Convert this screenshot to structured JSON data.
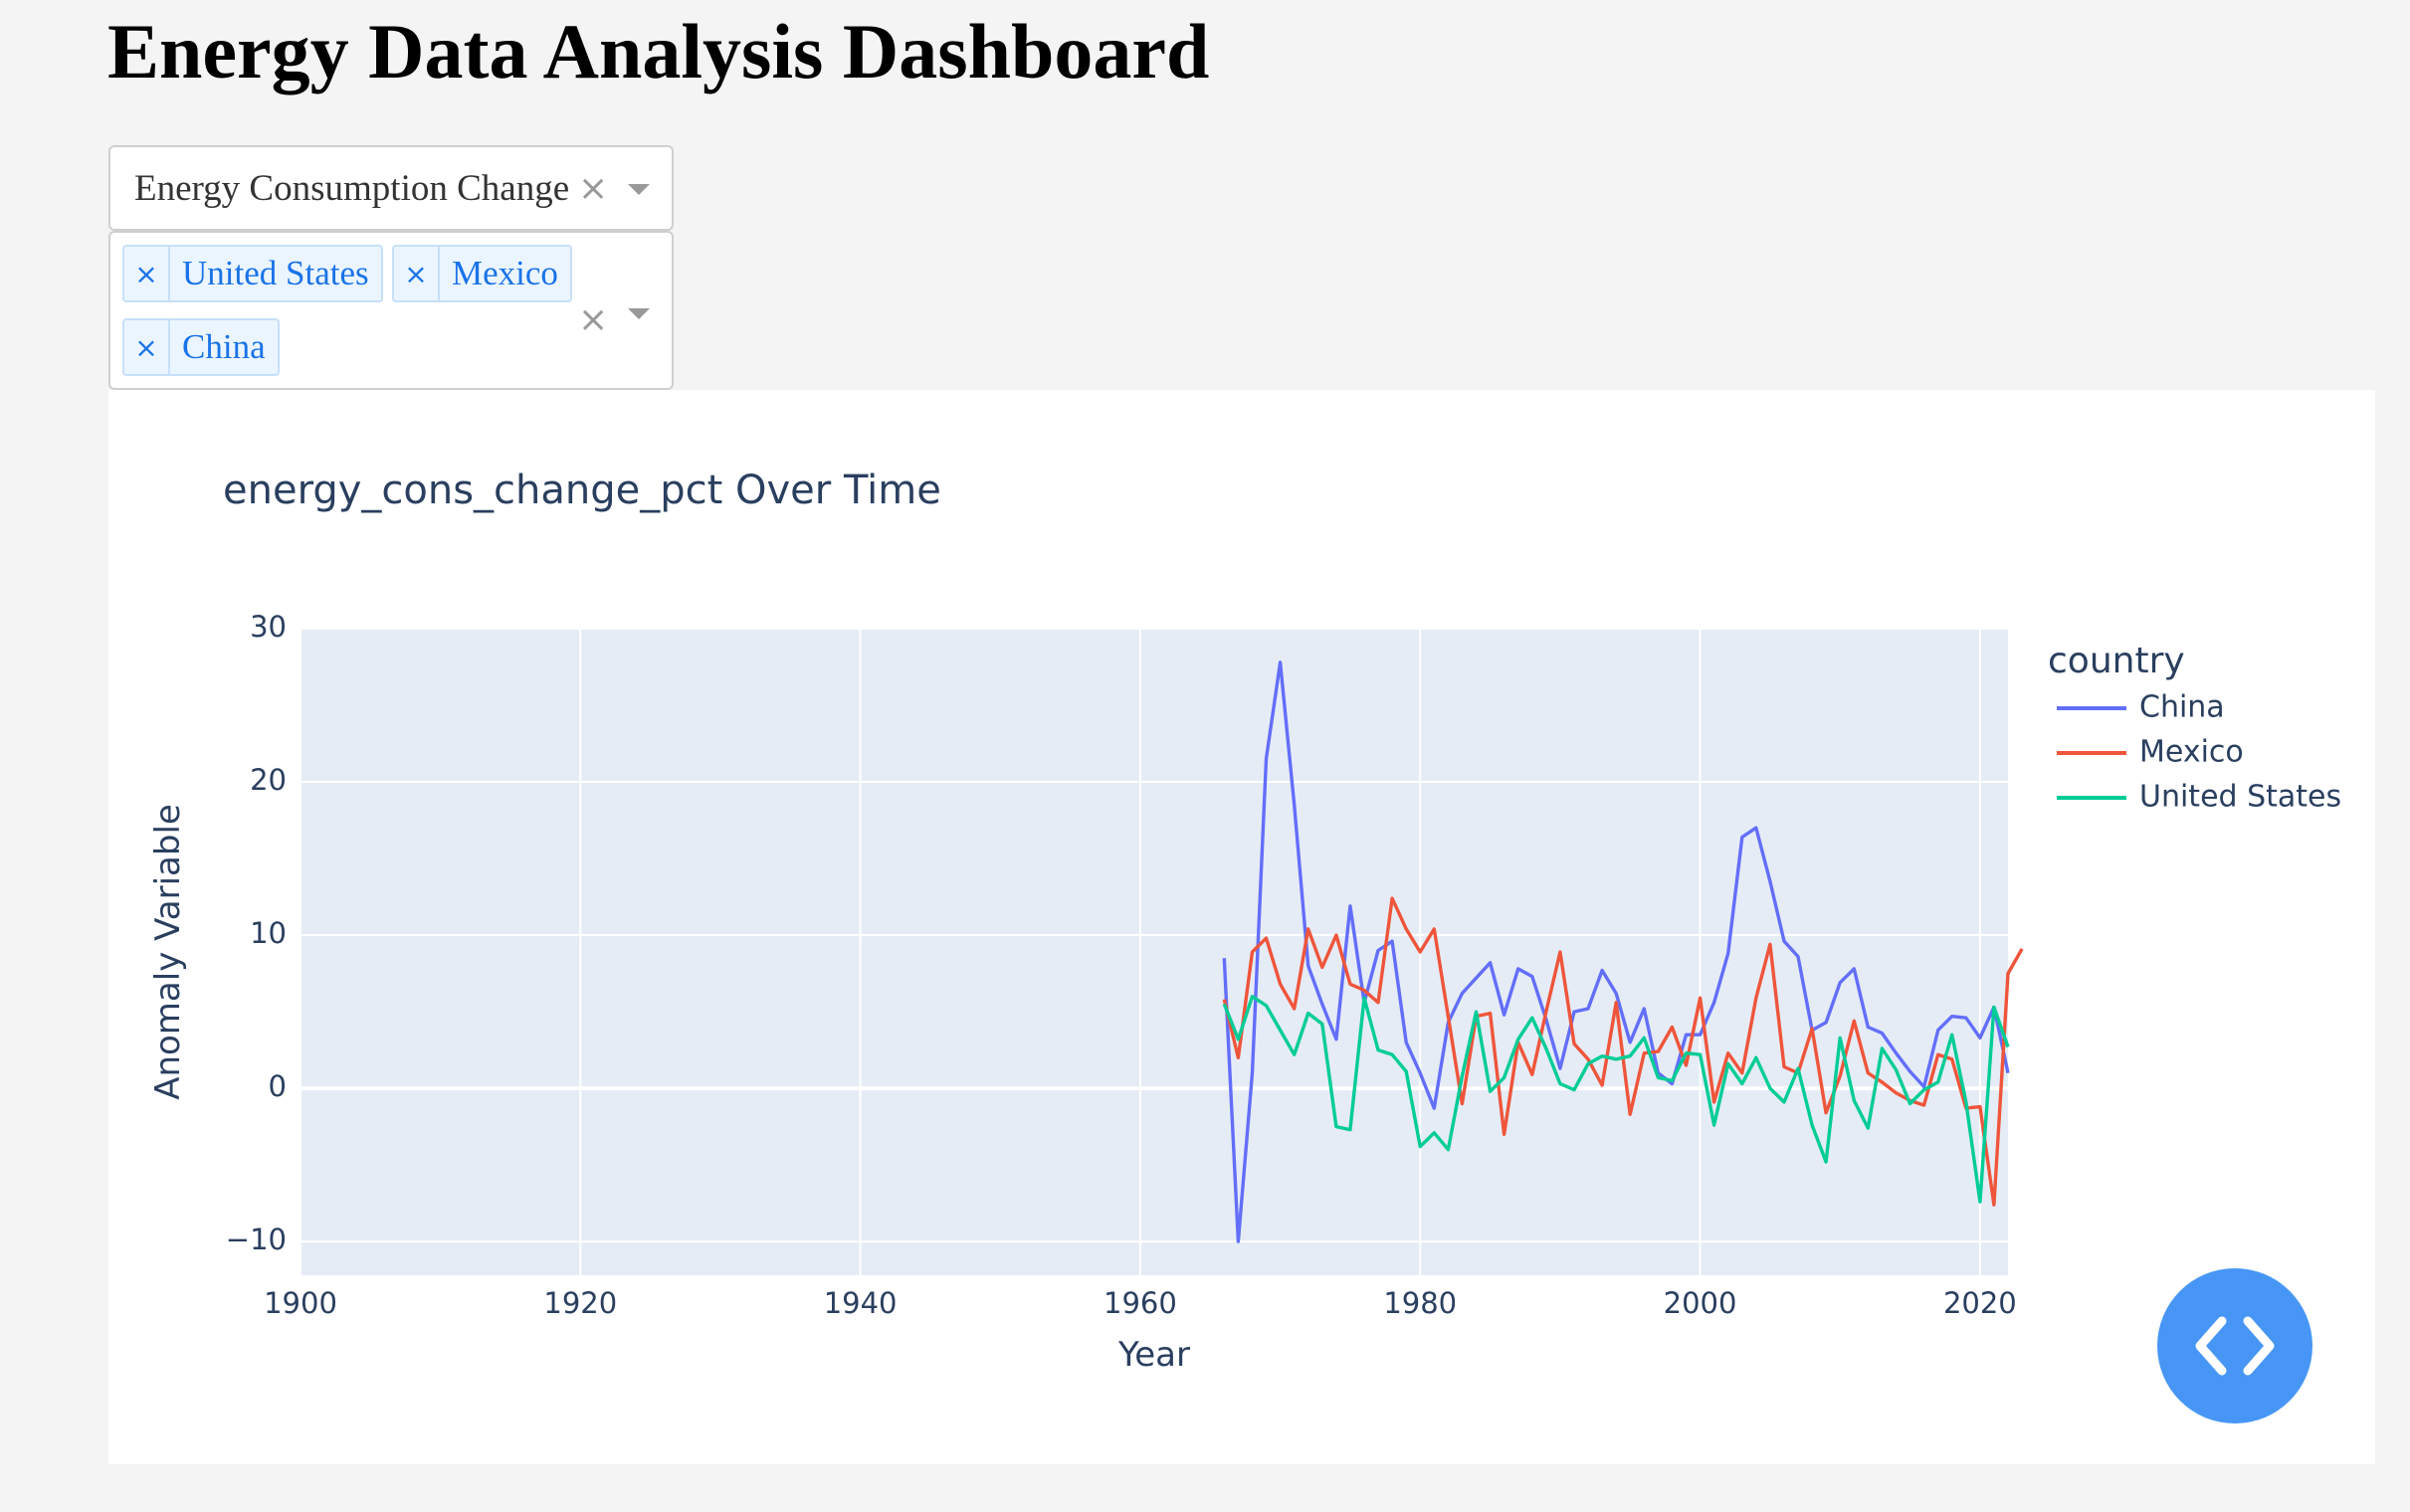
{
  "page": {
    "title": "Energy Data Analysis Dashboard"
  },
  "metric_dropdown": {
    "value": "Energy Consumption Change …"
  },
  "country_dropdown": {
    "selected": [
      "United States",
      "Mexico",
      "China"
    ]
  },
  "icons": {
    "clear": "clear-x-icon",
    "caret": "caret-down-icon",
    "tag_remove": "remove-tag-icon",
    "code": "code-brackets-icon"
  },
  "colors": {
    "China": "#636efa",
    "Mexico": "#ef553b",
    "United States": "#00cc96",
    "plot_bg": "#e5ecf6",
    "code_button": "#4796f5"
  },
  "chart_data": {
    "type": "line",
    "title": "energy_cons_change_pct Over Time",
    "xlabel": "Year",
    "ylabel": "Anomaly Variable",
    "xlim": [
      1900,
      2022
    ],
    "ylim": [
      -12.2,
      30
    ],
    "xticks": [
      1900,
      1920,
      1940,
      1960,
      1980,
      2000,
      2020
    ],
    "yticks": [
      -10,
      0,
      10,
      20,
      30
    ],
    "yticklabels": [
      "−10",
      "0",
      "10",
      "20",
      "30"
    ],
    "grid": true,
    "legend": {
      "title": "country",
      "placement": "right"
    },
    "series": [
      {
        "name": "China",
        "color": "#636efa",
        "x_start": 1966,
        "values": [
          8.5,
          -10,
          1,
          21.5,
          27.8,
          18.5,
          8,
          5.5,
          3.2,
          11.9,
          5.6,
          9,
          9.6,
          3,
          1,
          -1.3,
          4.3,
          6.2,
          7.2,
          8.2,
          4.8,
          7.8,
          7.3,
          4.5,
          1.3,
          5,
          5.2,
          7.7,
          6.2,
          3,
          5.2,
          1,
          0.3,
          3.5,
          3.5,
          5.6,
          8.8,
          16.4,
          17,
          13.5,
          9.6,
          8.6,
          3.8,
          4.3,
          6.9,
          7.8,
          4,
          3.6,
          2.3,
          1.1,
          0.1,
          3.8,
          4.7,
          4.6,
          3.3,
          5.3,
          1
        ]
      },
      {
        "name": "Mexico",
        "color": "#ef553b",
        "x_start": 1966,
        "values": [
          5.8,
          2,
          8.9,
          9.8,
          6.8,
          5.2,
          10.4,
          7.9,
          10,
          6.8,
          6.4,
          5.6,
          12.4,
          10.4,
          8.9,
          10.4,
          4.7,
          -1,
          4.7,
          4.9,
          -3,
          3,
          0.9,
          5,
          8.9,
          2.9,
          1.9,
          0.2,
          5.6,
          -1.7,
          2.3,
          2.4,
          4,
          1.5,
          5.9,
          -0.9,
          2.3,
          1,
          5.9,
          9.4,
          1.4,
          1,
          3.9,
          -1.6,
          0.8,
          4.4,
          1,
          0.4,
          -0.3,
          -0.8,
          -1.1,
          2.2,
          1.9,
          -1.3,
          -1.2,
          -7.6,
          7.5,
          9.1
        ]
      },
      {
        "name": "United States",
        "color": "#00cc96",
        "x_start": 1966,
        "values": [
          5.5,
          3.2,
          6,
          5.4,
          3.8,
          2.2,
          4.9,
          4.2,
          -2.5,
          -2.7,
          5.9,
          2.5,
          2.2,
          1.1,
          -3.8,
          -2.9,
          -4,
          0.8,
          5,
          -0.2,
          0.7,
          3.2,
          4.6,
          2.6,
          0.3,
          -0.1,
          1.6,
          2.1,
          1.9,
          2.1,
          3.3,
          0.7,
          0.5,
          2.3,
          2.2,
          -2.4,
          1.6,
          0.3,
          2,
          0,
          -0.9,
          1.3,
          -2.4,
          -4.8,
          3.3,
          -0.8,
          -2.6,
          2.6,
          1.2,
          -1,
          -0.1,
          0.4,
          3.5,
          -0.9,
          -7.4,
          5.3,
          2.7
        ]
      }
    ]
  }
}
